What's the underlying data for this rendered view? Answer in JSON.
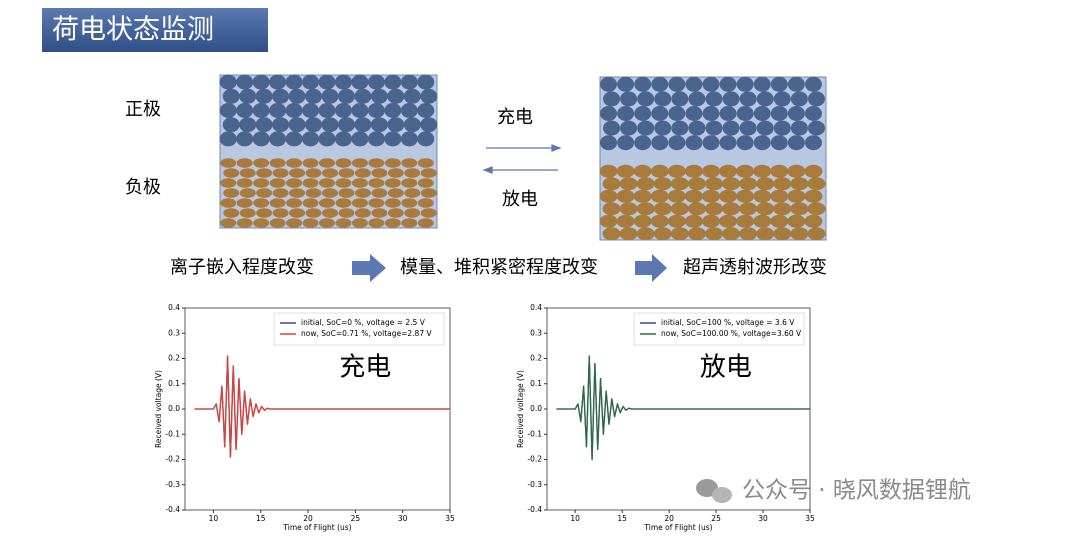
{
  "header": {
    "title": "荷电状态监测"
  },
  "diagram": {
    "positive": "正极",
    "negative": "负极",
    "charge": "充电",
    "discharge": "放电"
  },
  "flow": [
    "离子嵌入程度改变",
    "模量、堆积紧密程度改变",
    "超声透射波形改变"
  ],
  "watermark": "公众号 · 晓风数据锂航",
  "chart_data": [
    {
      "type": "line",
      "annotation": "充电",
      "x_label": "Time of Flight (us)",
      "y_label": "Received voltage (V)",
      "x": [
        8,
        10,
        10.3,
        10.6,
        10.9,
        11.2,
        11.5,
        11.8,
        12.1,
        12.4,
        12.7,
        13.0,
        13.3,
        13.6,
        13.9,
        14.2,
        14.5,
        14.8,
        15.1,
        15.4,
        15.7,
        16.0,
        17,
        35
      ],
      "series": [
        {
          "name": "initial, SoC=0 %, voltage = 2.5 V",
          "color": "#3b4a7a",
          "values": [
            0,
            0,
            0.02,
            -0.05,
            0.09,
            -0.15,
            0.21,
            -0.19,
            0.17,
            -0.16,
            0.12,
            -0.1,
            0.07,
            -0.06,
            0.04,
            -0.03,
            0.02,
            -0.015,
            0.01,
            -0.005,
            0.003,
            0,
            0,
            0
          ]
        },
        {
          "name": "now, SoC=0.71 %, voltage=2.87 V",
          "color": "#d9403a",
          "values": [
            0,
            0,
            0.02,
            -0.05,
            0.09,
            -0.15,
            0.21,
            -0.19,
            0.17,
            -0.16,
            0.12,
            -0.1,
            0.07,
            -0.06,
            0.04,
            -0.03,
            0.02,
            -0.015,
            0.01,
            -0.005,
            0.003,
            0,
            0,
            0
          ]
        }
      ],
      "xlim": [
        7,
        35
      ],
      "xticks": [
        10,
        15,
        20,
        25,
        30,
        35
      ],
      "ylim": [
        -0.4,
        0.4
      ],
      "yticks": [
        -0.4,
        -0.3,
        -0.2,
        -0.1,
        {
          "value": 0,
          "label": "0.0"
        },
        0.1,
        0.2,
        0.3,
        0.4
      ],
      "legend": "upper right"
    },
    {
      "type": "line",
      "annotation": "放电",
      "x_label": "Time of Flight (us)",
      "y_label": "Received voltage (V)",
      "x": [
        8,
        10,
        10.3,
        10.6,
        10.9,
        11.2,
        11.5,
        11.8,
        12.1,
        12.4,
        12.7,
        13.0,
        13.3,
        13.6,
        13.9,
        14.2,
        14.5,
        14.8,
        15.1,
        15.4,
        15.7,
        16.0,
        17,
        35
      ],
      "series": [
        {
          "name": "initial, SoC=100 %, voltage = 3.6 V",
          "color": "#3b4a7a",
          "values": [
            0,
            0,
            0.02,
            -0.05,
            0.09,
            -0.15,
            0.21,
            -0.2,
            0.18,
            -0.16,
            0.12,
            -0.1,
            0.07,
            -0.06,
            0.04,
            -0.03,
            0.02,
            -0.015,
            0.01,
            -0.005,
            0.003,
            0,
            0,
            0
          ]
        },
        {
          "name": "now, SoC=100.00 %, voltage=3.60 V",
          "color": "#2e6b45",
          "values": [
            0,
            0,
            0.02,
            -0.05,
            0.09,
            -0.15,
            0.21,
            -0.2,
            0.18,
            -0.16,
            0.12,
            -0.1,
            0.07,
            -0.06,
            0.04,
            -0.03,
            0.02,
            -0.015,
            0.01,
            -0.005,
            0.003,
            0,
            0,
            0
          ]
        }
      ],
      "xlim": [
        7,
        35
      ],
      "xticks": [
        10,
        15,
        20,
        25,
        30,
        35
      ],
      "ylim": [
        -0.4,
        0.4
      ],
      "yticks": [
        -0.4,
        -0.3,
        -0.2,
        -0.1,
        {
          "value": 0,
          "label": "0.0"
        },
        0.1,
        0.2,
        0.3,
        0.4
      ],
      "legend": "upper right"
    }
  ]
}
